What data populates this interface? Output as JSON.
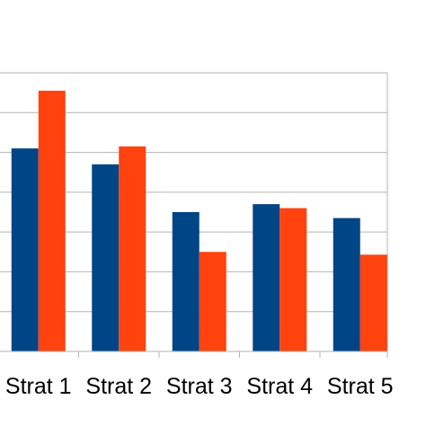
{
  "chart_data": {
    "type": "bar",
    "categories": [
      "Strat 1",
      "Strat 2",
      "Strat 3",
      "Strat 4",
      "Strat 5"
    ],
    "series": [
      {
        "values": [
          5.1,
          4.7,
          3.5,
          3.7,
          3.35
        ],
        "color": "#004586"
      },
      {
        "values": [
          6.55,
          5.15,
          2.5,
          3.6,
          2.43
        ],
        "color": "#ff420e"
      }
    ],
    "ylim": [
      0,
      7
    ],
    "grid": true,
    "title": "",
    "xlabel": "",
    "ylabel": ""
  }
}
